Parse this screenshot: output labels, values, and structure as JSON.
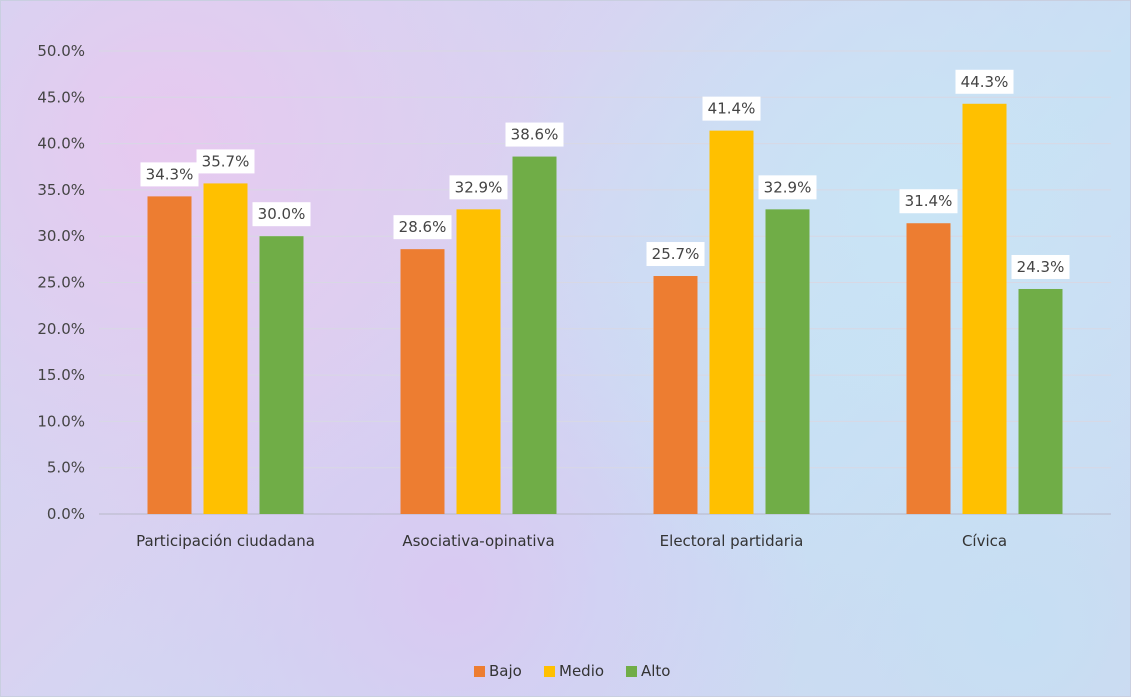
{
  "chart_data": {
    "type": "bar",
    "categories": [
      "Participación ciudadana",
      "Asociativa-opinativa",
      "Electoral partidaria",
      "Cívica"
    ],
    "series": [
      {
        "name": "Bajo",
        "color": "#ed7d31",
        "values": [
          34.3,
          28.6,
          25.7,
          31.4
        ]
      },
      {
        "name": "Medio",
        "color": "#ffc000",
        "values": [
          35.7,
          32.9,
          41.4,
          44.3
        ]
      },
      {
        "name": "Alto",
        "color": "#70ad47",
        "values": [
          30.0,
          38.6,
          32.9,
          24.3
        ]
      }
    ],
    "ylim": [
      0,
      50
    ],
    "yticks": [
      "0.0%",
      "5.0%",
      "10.0%",
      "15.0%",
      "20.0%",
      "25.0%",
      "30.0%",
      "35.0%",
      "40.0%",
      "45.0%",
      "50.0%"
    ],
    "value_format": "percent_1dp",
    "grid": true,
    "legend": "bottom-center",
    "title": "",
    "xlabel": "",
    "ylabel": ""
  }
}
